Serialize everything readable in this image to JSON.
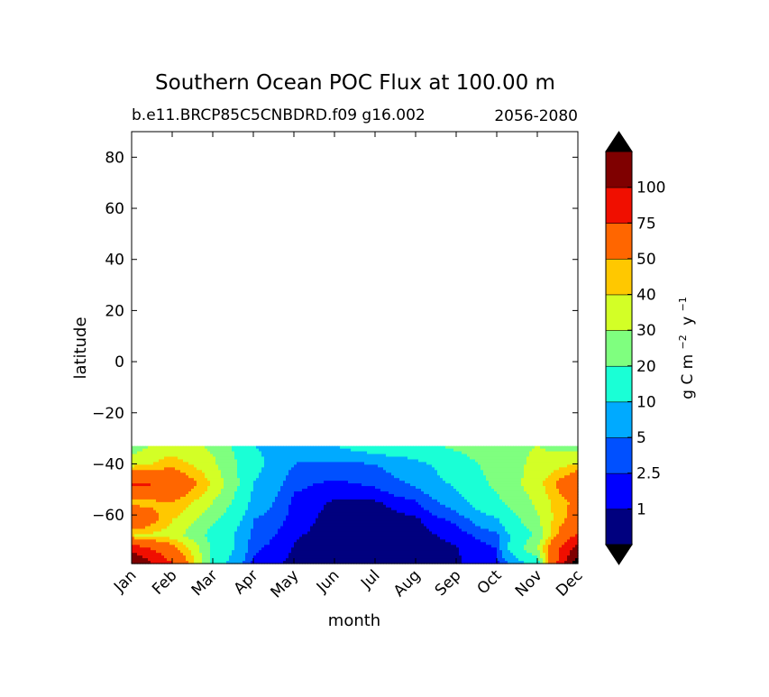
{
  "chart_data": {
    "type": "contour",
    "title": "Southern Ocean POC Flux at 100.00 m",
    "subtitle_left": "b.e11.BRCP85C5CNBDRD.f09 g16.002",
    "subtitle_right": "2056-2080",
    "xlabel": "month",
    "ylabel": "latitude",
    "x_categories": [
      "Jan",
      "Feb",
      "Mar",
      "Apr",
      "May",
      "Jun",
      "Jul",
      "Aug",
      "Sep",
      "Oct",
      "Nov",
      "Dec"
    ],
    "xlim": [
      0,
      11
    ],
    "ylim": [
      -79,
      90
    ],
    "y_ticks": [
      80,
      60,
      40,
      20,
      0,
      -20,
      -40,
      -60
    ],
    "y_tick_labels": [
      "80",
      "60",
      "40",
      "20",
      "0",
      "−20",
      "−40",
      "−60"
    ],
    "data_latitude_max": -33,
    "colorbar": {
      "label_text": "g C m",
      "label_exp1": "−2",
      "label_mid": "y",
      "label_exp2": "−1",
      "levels": [
        0,
        1,
        2.5,
        5,
        10,
        20,
        30,
        40,
        50,
        75,
        100,
        125
      ],
      "tick_labels": [
        "1",
        "2.5",
        "5",
        "10",
        "20",
        "30",
        "40",
        "50",
        "75",
        "100"
      ],
      "colors": [
        "#00007f",
        "#0000ff",
        "#0050ff",
        "#00aaff",
        "#1affd6",
        "#7fff7f",
        "#d3ff26",
        "#ffc800",
        "#ff6600",
        "#f00f00",
        "#7f0000"
      ],
      "extend_low_color": "#000000",
      "extend_high_color": "#000000"
    },
    "contour_grid": {
      "lat": [
        -33,
        -40,
        -48,
        -55,
        -62,
        -68,
        -73,
        -79
      ],
      "values": [
        [
          25,
          35,
          28,
          10,
          8,
          10,
          14,
          16,
          22,
          28,
          30,
          25
        ],
        [
          35,
          45,
          32,
          12,
          5,
          4,
          5,
          8,
          14,
          25,
          32,
          40
        ],
        [
          80,
          70,
          38,
          10,
          3,
          2,
          2.8,
          5.5,
          11,
          22,
          35,
          70
        ],
        [
          45,
          50,
          30,
          8,
          2,
          0.8,
          0.8,
          2.2,
          7,
          18,
          32,
          55
        ],
        [
          70,
          40,
          22,
          5,
          1.8,
          0.3,
          0.2,
          0.7,
          3,
          9,
          28,
          60
        ],
        [
          40,
          35,
          16,
          4,
          1.2,
          0.3,
          0.2,
          0.4,
          1.5,
          4,
          22,
          80
        ],
        [
          90,
          55,
          18,
          3,
          0.9,
          0.3,
          0.2,
          0.3,
          0.9,
          2.5,
          30,
          110
        ],
        [
          130,
          75,
          14,
          2,
          0.6,
          0.3,
          0.2,
          0.3,
          0.8,
          2,
          12,
          140
        ]
      ]
    }
  }
}
